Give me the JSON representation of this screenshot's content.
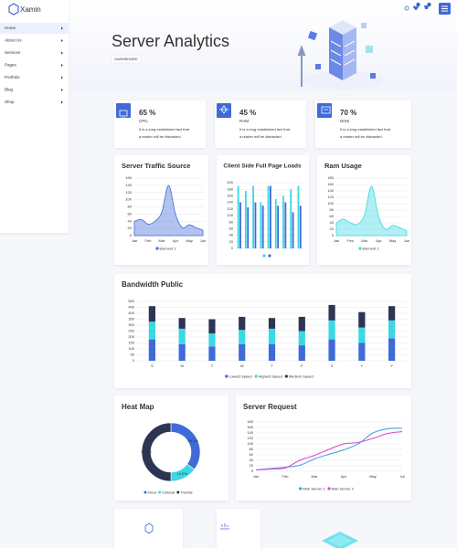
{
  "sidebar": {
    "logo": "Xamin",
    "menu": [
      "Home",
      "About Us",
      "Services",
      "Pages",
      "Portfolio",
      "Blog",
      "Shop"
    ]
  },
  "header": {
    "title": "Server Analytics",
    "breadcrumb": "DASHBOARD",
    "badges": [
      "0",
      "0"
    ]
  },
  "stats": [
    {
      "value": "65 %",
      "label": "CPU",
      "text": [
        "It is a long established fact that",
        "a reader will be distracted"
      ]
    },
    {
      "value": "45 %",
      "label": "RAM",
      "text": [
        "It is a long established fact that",
        "a reader will be distracted"
      ]
    },
    {
      "value": "70 %",
      "label": "DISK",
      "text": [
        "It is a long established fact that",
        "a reader will be distracted"
      ]
    }
  ],
  "chart_data": [
    {
      "type": "area",
      "title": "Server Traffic Source",
      "categories": [
        "Jan",
        null,
        "Feb",
        null,
        "Mar",
        null,
        "Apr",
        null,
        "May",
        null,
        "Jun"
      ],
      "series": [
        {
          "name": "Element 1",
          "color": "#3f6ad8",
          "values": [
            40,
            45,
            32,
            40,
            65,
            140,
            60,
            22,
            30,
            22,
            15
          ]
        }
      ],
      "ylim": [
        0,
        160
      ],
      "yticks": [
        0,
        20,
        40,
        60,
        80,
        100,
        120,
        140,
        160
      ],
      "grid": true
    },
    {
      "type": "bar",
      "title": "Client Side Full Page Loads",
      "categories": [
        null,
        null,
        null,
        null,
        null,
        null,
        null,
        null,
        null
      ],
      "series": [
        {
          "color": "#3ad8e4",
          "values": [
            190,
            175,
            190,
            140,
            190,
            150,
            160,
            180,
            190
          ]
        },
        {
          "color": "#3f6ad8",
          "values": [
            140,
            125,
            140,
            130,
            190,
            130,
            140,
            110,
            130
          ]
        }
      ],
      "ylim": [
        0,
        200
      ],
      "yticks": [
        0,
        20,
        40,
        60,
        80,
        100,
        120,
        140,
        160,
        180,
        200
      ],
      "grid": true
    },
    {
      "type": "area",
      "title": "Ram Usage",
      "categories": [
        "Jan",
        null,
        "Feb",
        null,
        "Mar",
        null,
        "Apr",
        null,
        "May",
        null,
        "Jun"
      ],
      "series": [
        {
          "name": "Element 1",
          "color": "#3ad8e4",
          "values": [
            40,
            52,
            40,
            35,
            65,
            155,
            60,
            20,
            32,
            25,
            15
          ]
        }
      ],
      "ylim": [
        0,
        180
      ],
      "yticks": [
        0,
        20,
        40,
        60,
        80,
        100,
        120,
        140,
        160,
        180
      ],
      "grid": true
    },
    {
      "type": "stacked-bar",
      "title": "Bandwidth Public",
      "categories": [
        "S",
        "M",
        "T",
        "W",
        "T",
        "F",
        "S",
        "Y",
        "Y"
      ],
      "series": [
        {
          "name": "Lowest Speed",
          "color": "#3f6ad8",
          "values": [
            180,
            140,
            120,
            140,
            140,
            130,
            180,
            150,
            190
          ]
        },
        {
          "name": "Highest Speed",
          "color": "#3ad8e4",
          "values": [
            150,
            130,
            110,
            120,
            130,
            120,
            160,
            130,
            150
          ]
        },
        {
          "name": "Medium Speed",
          "color": "#2c3553",
          "values": [
            130,
            90,
            120,
            110,
            90,
            120,
            130,
            130,
            120
          ]
        }
      ],
      "ylim": [
        0,
        500
      ],
      "yticks": [
        0,
        50,
        100,
        150,
        200,
        250,
        300,
        350,
        400,
        450,
        500
      ],
      "grid": true
    },
    {
      "type": "donut",
      "title": "Heat Map",
      "categories": [
        "Clear",
        "Cellocal",
        "Trouble"
      ],
      "values": [
        35.1,
        14.9,
        50.0
      ],
      "value_labels": [
        "35.1%",
        "14.9%",
        "50.0%"
      ],
      "colors": [
        "#3f6ad8",
        "#3ad8e4",
        "#2c3553"
      ]
    },
    {
      "type": "line",
      "title": "Server Request",
      "categories": [
        "Jan",
        null,
        "Feb",
        null,
        "Mar",
        null,
        "Apr",
        null,
        "May",
        null,
        "Jul"
      ],
      "series": [
        {
          "name": "Web Server 1",
          "color": "#3a9fdc",
          "values": [
            5,
            10,
            15,
            22,
            45,
            62,
            78,
            100,
            140,
            155,
            157
          ]
        },
        {
          "name": "Web Server 2",
          "color": "#e23fd0",
          "values": [
            5,
            8,
            12,
            40,
            58,
            80,
            100,
            105,
            120,
            138,
            145
          ]
        }
      ],
      "ylim": [
        0,
        180
      ],
      "yticks": [
        0,
        20,
        40,
        60,
        80,
        100,
        120,
        140,
        160,
        180
      ],
      "grid": true
    }
  ]
}
